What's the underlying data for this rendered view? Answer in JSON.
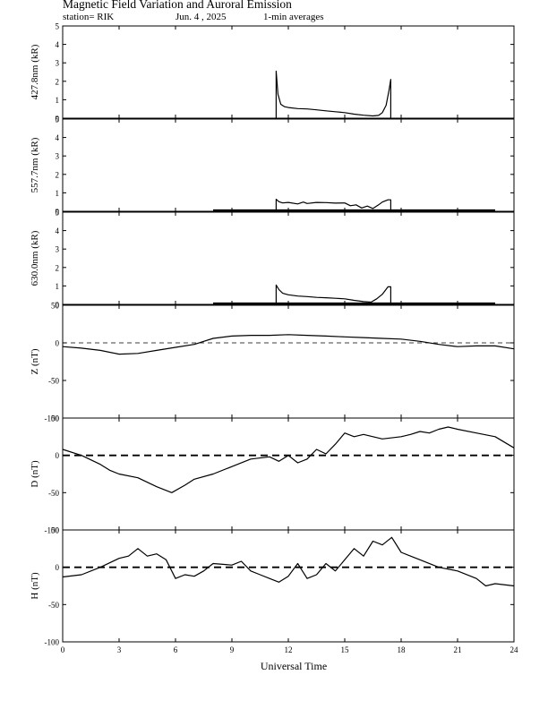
{
  "title": "Magnetic Field Variation and Auroral Emission",
  "subtitle": {
    "station": "station= RIK",
    "date": "Jun. 4  , 2025",
    "averages": "1-min averages"
  },
  "chart_data": {
    "type": "line",
    "xlabel": "Universal Time",
    "xlim": [
      0,
      24
    ],
    "xticks": [
      "0",
      "3",
      "6",
      "9",
      "12",
      "15",
      "18",
      "21",
      "24"
    ],
    "panels": [
      {
        "id": "427",
        "ylabel": "427.8nm (kR)",
        "ylim": [
          0,
          5
        ],
        "yticks": [
          "0",
          "1",
          "2",
          "3",
          "4",
          "5"
        ],
        "zero_line": "none",
        "series": [
          [
            11.35,
            2.55
          ],
          [
            11.45,
            1.3
          ],
          [
            11.6,
            0.75
          ],
          [
            11.8,
            0.62
          ],
          [
            12.0,
            0.58
          ],
          [
            12.5,
            0.52
          ],
          [
            13.0,
            0.5
          ],
          [
            13.5,
            0.45
          ],
          [
            14.0,
            0.4
          ],
          [
            14.5,
            0.35
          ],
          [
            15.0,
            0.3
          ],
          [
            15.5,
            0.22
          ],
          [
            16.0,
            0.16
          ],
          [
            16.5,
            0.12
          ],
          [
            16.8,
            0.15
          ],
          [
            17.0,
            0.3
          ],
          [
            17.2,
            0.7
          ],
          [
            17.35,
            1.5
          ],
          [
            17.45,
            2.1
          ]
        ]
      },
      {
        "id": "557",
        "ylabel": "557.7nm (kR)",
        "ylim": [
          0,
          5
        ],
        "yticks": [
          "0",
          "1",
          "2",
          "3",
          "4",
          "5"
        ],
        "zero_line": "none",
        "baseline_range": [
          8.0,
          23.0
        ],
        "series": [
          [
            11.35,
            0.65
          ],
          [
            11.5,
            0.52
          ],
          [
            11.7,
            0.45
          ],
          [
            12.0,
            0.48
          ],
          [
            12.5,
            0.4
          ],
          [
            12.8,
            0.5
          ],
          [
            13.0,
            0.42
          ],
          [
            13.5,
            0.48
          ],
          [
            14.0,
            0.47
          ],
          [
            14.5,
            0.44
          ],
          [
            15.0,
            0.45
          ],
          [
            15.3,
            0.3
          ],
          [
            15.6,
            0.35
          ],
          [
            15.9,
            0.18
          ],
          [
            16.2,
            0.28
          ],
          [
            16.5,
            0.15
          ],
          [
            16.8,
            0.35
          ],
          [
            17.0,
            0.5
          ],
          [
            17.3,
            0.62
          ],
          [
            17.45,
            0.62
          ]
        ]
      },
      {
        "id": "630",
        "ylabel": "630.0nm (kR)",
        "ylim": [
          0,
          5
        ],
        "yticks": [
          "0",
          "1",
          "2",
          "3",
          "4",
          "5"
        ],
        "zero_line": "none",
        "baseline_range": [
          8.0,
          23.0
        ],
        "series": [
          [
            11.35,
            1.05
          ],
          [
            11.5,
            0.8
          ],
          [
            11.7,
            0.6
          ],
          [
            12.0,
            0.52
          ],
          [
            12.5,
            0.45
          ],
          [
            13.0,
            0.42
          ],
          [
            13.5,
            0.38
          ],
          [
            14.0,
            0.36
          ],
          [
            14.5,
            0.33
          ],
          [
            15.0,
            0.3
          ],
          [
            15.5,
            0.22
          ],
          [
            16.0,
            0.15
          ],
          [
            16.4,
            0.12
          ],
          [
            16.7,
            0.3
          ],
          [
            17.0,
            0.55
          ],
          [
            17.3,
            0.95
          ],
          [
            17.45,
            0.95
          ]
        ]
      },
      {
        "id": "Z",
        "ylabel": "Z (nT)",
        "ylim": [
          -100,
          50
        ],
        "yticks": [
          "-100",
          "-50",
          "0",
          "50"
        ],
        "zero_line": "thin",
        "series": [
          [
            0,
            -5
          ],
          [
            1,
            -7
          ],
          [
            2,
            -10
          ],
          [
            3,
            -15
          ],
          [
            4,
            -14
          ],
          [
            5,
            -10
          ],
          [
            6,
            -6
          ],
          [
            7,
            -2
          ],
          [
            8,
            6
          ],
          [
            9,
            9
          ],
          [
            10,
            10
          ],
          [
            11,
            10
          ],
          [
            12,
            11
          ],
          [
            13,
            10
          ],
          [
            14,
            9
          ],
          [
            15,
            8
          ],
          [
            16,
            7
          ],
          [
            17,
            6
          ],
          [
            18,
            5
          ],
          [
            19,
            2
          ],
          [
            20,
            -2
          ],
          [
            21,
            -5
          ],
          [
            22,
            -4
          ],
          [
            23,
            -4
          ],
          [
            24,
            -8
          ]
        ]
      },
      {
        "id": "D",
        "ylabel": "D (nT)",
        "ylim": [
          -100,
          50
        ],
        "yticks": [
          "-100",
          "-50",
          "0",
          "50"
        ],
        "zero_line": "dashed",
        "series": [
          [
            0,
            8
          ],
          [
            1,
            0
          ],
          [
            2,
            -12
          ],
          [
            2.5,
            -20
          ],
          [
            3,
            -25
          ],
          [
            4,
            -30
          ],
          [
            5,
            -42
          ],
          [
            5.8,
            -50
          ],
          [
            6.5,
            -40
          ],
          [
            7,
            -32
          ],
          [
            8,
            -25
          ],
          [
            9,
            -15
          ],
          [
            10,
            -5
          ],
          [
            11,
            -2
          ],
          [
            11.5,
            -8
          ],
          [
            12,
            0
          ],
          [
            12.5,
            -10
          ],
          [
            13,
            -5
          ],
          [
            13.5,
            8
          ],
          [
            14,
            2
          ],
          [
            14.5,
            15
          ],
          [
            15,
            30
          ],
          [
            15.5,
            25
          ],
          [
            16,
            28
          ],
          [
            17,
            22
          ],
          [
            18,
            25
          ],
          [
            18.5,
            28
          ],
          [
            19,
            32
          ],
          [
            19.5,
            30
          ],
          [
            20,
            35
          ],
          [
            20.5,
            38
          ],
          [
            21,
            35
          ],
          [
            22,
            30
          ],
          [
            23,
            25
          ],
          [
            24,
            10
          ]
        ]
      },
      {
        "id": "H",
        "ylabel": "H (nT)",
        "ylim": [
          -100,
          50
        ],
        "yticks": [
          "-100",
          "-50",
          "0",
          "50"
        ],
        "zero_line": "dashed",
        "series": [
          [
            0,
            -13
          ],
          [
            1,
            -10
          ],
          [
            2,
            0
          ],
          [
            3,
            12
          ],
          [
            3.5,
            15
          ],
          [
            4,
            25
          ],
          [
            4.5,
            15
          ],
          [
            5,
            18
          ],
          [
            5.5,
            10
          ],
          [
            6,
            -15
          ],
          [
            6.5,
            -10
          ],
          [
            7,
            -12
          ],
          [
            7.5,
            -5
          ],
          [
            8,
            5
          ],
          [
            9,
            3
          ],
          [
            9.5,
            8
          ],
          [
            10,
            -5
          ],
          [
            10.5,
            -10
          ],
          [
            11,
            -15
          ],
          [
            11.5,
            -20
          ],
          [
            12,
            -12
          ],
          [
            12.5,
            5
          ],
          [
            13,
            -15
          ],
          [
            13.5,
            -10
          ],
          [
            14,
            5
          ],
          [
            14.5,
            -5
          ],
          [
            15,
            10
          ],
          [
            15.5,
            25
          ],
          [
            16,
            15
          ],
          [
            16.5,
            35
          ],
          [
            17,
            30
          ],
          [
            17.5,
            40
          ],
          [
            18,
            20
          ],
          [
            18.5,
            15
          ],
          [
            19,
            10
          ],
          [
            20,
            0
          ],
          [
            21,
            -5
          ],
          [
            22,
            -15
          ],
          [
            22.5,
            -25
          ],
          [
            23,
            -22
          ],
          [
            24,
            -25
          ]
        ]
      }
    ]
  }
}
